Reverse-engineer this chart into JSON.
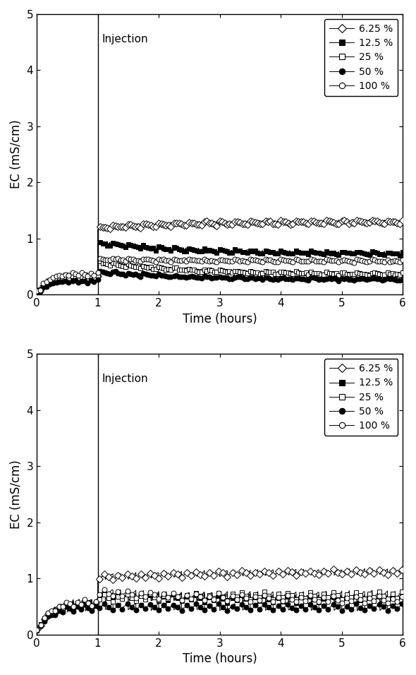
{
  "xlim": [
    0,
    6
  ],
  "ylim": [
    0,
    5
  ],
  "xlabel": "Time (hours)",
  "ylabel": "EC (mS/cm)",
  "injection_x": 1.0,
  "injection_label": "Injection",
  "legend_labels": [
    "6.25 %",
    "12.5 %",
    "25 %",
    "50 %",
    "100 %"
  ],
  "markers": [
    "D",
    "s",
    "s",
    "o",
    "o"
  ],
  "fillstyles": [
    "none",
    "full",
    "none",
    "full",
    "none"
  ],
  "top": {
    "6.25": {
      "pre_base": 0.32,
      "post_base": 1.33,
      "post_drop": 1.22,
      "amp_pre": 0.1,
      "amp_post": 0.06,
      "n_pre": 12,
      "n_post": 100
    },
    "12.5": {
      "pre_base": 0.38,
      "post_base": 0.75,
      "post_drop": 0.95,
      "amp_pre": 0.07,
      "amp_post": 0.05,
      "n_pre": 12,
      "n_post": 100
    },
    "25": {
      "pre_base": 0.33,
      "post_base": 0.38,
      "post_drop": 0.6,
      "amp_pre": 0.07,
      "amp_post": 0.04,
      "n_pre": 12,
      "n_post": 100
    },
    "50": {
      "pre_base": 0.27,
      "post_base": 0.28,
      "post_drop": 0.42,
      "amp_pre": 0.06,
      "amp_post": 0.03,
      "n_pre": 12,
      "n_post": 100
    },
    "100": {
      "pre_base": 0.4,
      "post_base": 0.62,
      "post_drop": 0.65,
      "amp_pre": 0.08,
      "amp_post": 0.04,
      "n_pre": 12,
      "n_post": 100
    }
  },
  "bottom": {
    "6.25": {
      "pre_base": 0.52,
      "post_base": 1.18,
      "post_drop": 1.07,
      "amp_pre": 0.13,
      "amp_post": 0.1,
      "n_pre": 10,
      "n_post": 40
    },
    "12.5": {
      "pre_base": 0.52,
      "post_base": 0.68,
      "post_drop": 0.75,
      "amp_pre": 0.13,
      "amp_post": 0.12,
      "n_pre": 10,
      "n_post": 40
    },
    "25": {
      "pre_base": 0.52,
      "post_base": 0.78,
      "post_drop": 0.72,
      "amp_pre": 0.13,
      "amp_post": 0.14,
      "n_pre": 10,
      "n_post": 40
    },
    "50": {
      "pre_base": 0.45,
      "post_base": 0.55,
      "post_drop": 0.56,
      "amp_pre": 0.12,
      "amp_post": 0.12,
      "n_pre": 10,
      "n_post": 40
    },
    "100": {
      "pre_base": 0.55,
      "post_base": 0.68,
      "post_drop": 0.82,
      "amp_pre": 0.13,
      "amp_post": 0.13,
      "n_pre": 10,
      "n_post": 40
    }
  },
  "figsize": [
    5.9,
    9.56
  ],
  "dpi": 100
}
